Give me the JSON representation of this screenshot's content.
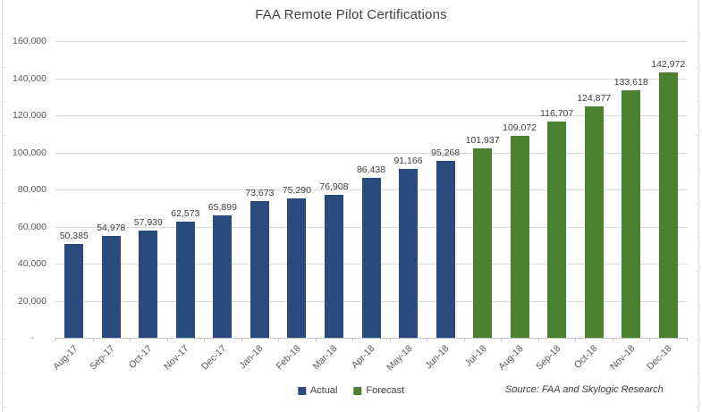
{
  "title": "FAA Remote Pilot Certifications",
  "source_note": "Source: FAA and Skylogic Research",
  "colors": {
    "actual": "#284A7C",
    "forecast": "#4A8230",
    "gridline": "#D9D9D9",
    "axis_line": "#C6C6C6",
    "title_text": "#404040",
    "axis_text": "#595959",
    "data_label_text": "#404040",
    "background": "#FFFFFF"
  },
  "legend": {
    "position": "bottom-center",
    "items": [
      {
        "label": "Actual",
        "color": "#284A7C"
      },
      {
        "label": "Forecast",
        "color": "#4A8230"
      }
    ]
  },
  "chart_data": {
    "type": "bar",
    "title": "FAA Remote Pilot Certifications",
    "xlabel": "",
    "ylabel": "",
    "categories": [
      "Aug-17",
      "Sep-17",
      "Oct-17",
      "Nov-17",
      "Dec-17",
      "Jan-18",
      "Feb-18",
      "Mar-18",
      "Apr-18",
      "May-18",
      "Jun-18",
      "Jul-18",
      "Aug-18",
      "Sep-18",
      "Oct-18",
      "Nov-18",
      "Dec-18"
    ],
    "series": [
      {
        "name": "Actual",
        "color": "#284A7C",
        "values": [
          50385,
          54978,
          57939,
          62573,
          65899,
          73673,
          75290,
          76908,
          86438,
          91166,
          95268,
          null,
          null,
          null,
          null,
          null,
          null
        ]
      },
      {
        "name": "Forecast",
        "color": "#4A8230",
        "values": [
          null,
          null,
          null,
          null,
          null,
          null,
          null,
          null,
          null,
          null,
          null,
          101937,
          109072,
          116707,
          124877,
          133618,
          142972
        ]
      }
    ],
    "ylim": [
      0,
      160000
    ],
    "ytick_interval": 20000,
    "ytick_labels": [
      "-",
      "20,000",
      "40,000",
      "60,000",
      "80,000",
      "100,000",
      "120,000",
      "140,000",
      "160,000"
    ],
    "grid": true,
    "data_labels": true,
    "legend_position": "bottom"
  }
}
